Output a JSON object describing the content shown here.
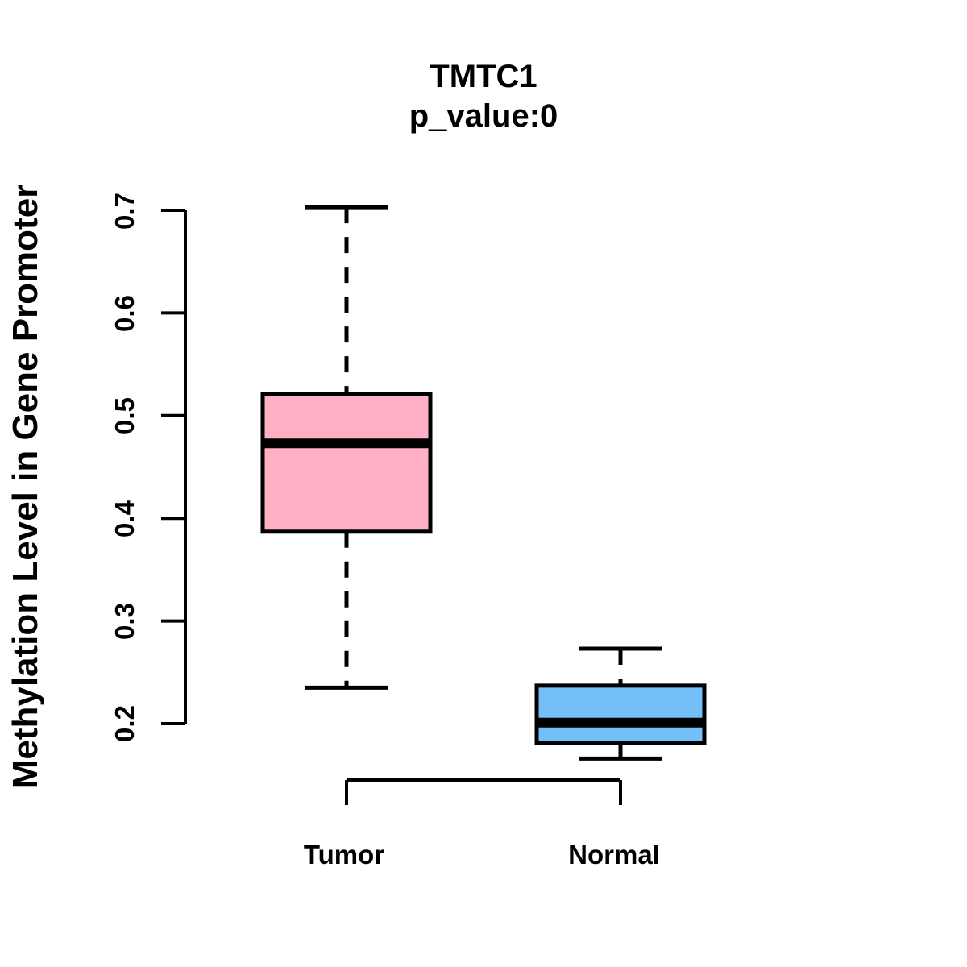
{
  "chart_data": {
    "type": "boxplot",
    "title": "TMTC1",
    "subtitle": "p_value:0",
    "ylabel": "Methylation Level in Gene Promoter",
    "xlabel": "",
    "ylim": [
      0.2,
      0.7
    ],
    "yticks": [
      "0.2",
      "0.3",
      "0.4",
      "0.5",
      "0.6",
      "0.7"
    ],
    "grid": false,
    "legend": "none",
    "colors": {
      "tumor_box": "#FFB0C4",
      "normal_box": "#74BFF7",
      "stroke": "#000000",
      "background": "#FFFFFF"
    },
    "whisker_line_style": "dashed",
    "groups": [
      {
        "label": "Tumor",
        "color": "#FFB0C4",
        "whisker_low": 0.235,
        "q1": 0.387,
        "median": 0.473,
        "q3": 0.521,
        "whisker_high": 0.703
      },
      {
        "label": "Normal",
        "color": "#74BFF7",
        "whisker_low": 0.166,
        "q1": 0.181,
        "median": 0.201,
        "q3": 0.237,
        "whisker_high": 0.273
      }
    ]
  }
}
